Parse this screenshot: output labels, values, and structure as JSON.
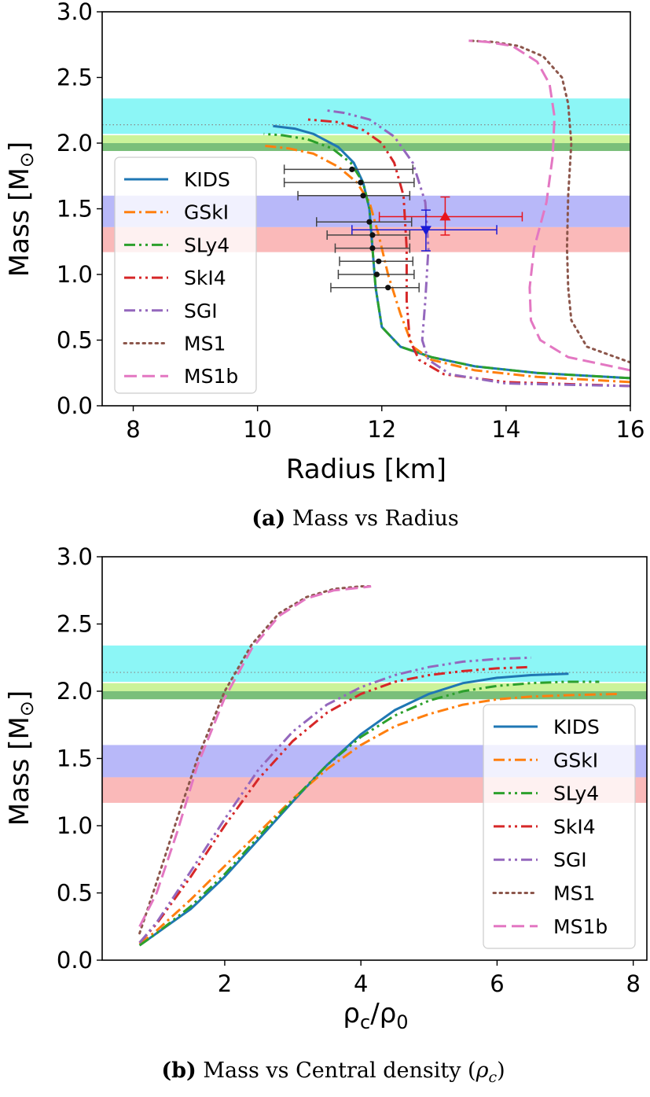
{
  "colors": {
    "KIDS": "#1f77b4",
    "GSkI": "#ff7f0e",
    "SLy4": "#2ca02c",
    "SkI4": "#d62728",
    "SGI": "#9467bd",
    "MS1": "#8c564b",
    "MS1b": "#e377c2",
    "band_cyan": "#7ff5f5",
    "band_green_light": "#c5f28f",
    "band_green_dark": "#6cb86c",
    "band_blue": "#b0b0f8",
    "band_red": "#f9b1b1",
    "band_pink": "#fde4e4"
  },
  "captions": {
    "a_label": "(a)",
    "a_text": "Mass vs Radius",
    "b_label": "(b)",
    "b_text": "Mass vs Central density (ρ_c)",
    "b_text_main": "Mass vs Central density (",
    "b_text_rho": "ρ",
    "b_text_sub": "c",
    "b_text_end": ")"
  },
  "chart_data": [
    {
      "id": "a",
      "type": "line",
      "title": "Mass vs Radius",
      "xlabel": "Radius [km]",
      "ylabel": "Mass [M⊙]",
      "ylabel_main": "Mass [M",
      "ylabel_sym": "⊙",
      "ylabel_end": "]",
      "xlim": [
        7.5,
        16
      ],
      "ylim": [
        0,
        3.0
      ],
      "xticks": [
        "8",
        "10",
        "12",
        "14",
        "16"
      ],
      "xtick_values": [
        8,
        10,
        12,
        14,
        16
      ],
      "yticks": [
        "0.0",
        "0.5",
        "1.0",
        "1.5",
        "2.0",
        "2.5",
        "3.0"
      ],
      "ytick_values": [
        0,
        0.5,
        1.0,
        1.5,
        2.0,
        2.5,
        3.0
      ],
      "legend_position": "center-left",
      "bands": [
        {
          "y0": 2.07,
          "y1": 2.34,
          "color": "band_cyan"
        },
        {
          "y0": 2.0,
          "y1": 2.06,
          "color": "band_green_light"
        },
        {
          "y0": 1.94,
          "y1": 2.0,
          "color": "band_green_dark"
        },
        {
          "y0": 1.36,
          "y1": 1.6,
          "color": "band_blue"
        },
        {
          "y0": 1.17,
          "y1": 1.36,
          "color": "band_red"
        }
      ],
      "hline": 2.14,
      "series": [
        {
          "name": "KIDS",
          "style": "solid",
          "x": [
            16.0,
            14.5,
            13.5,
            12.8,
            12.3,
            12.0,
            11.9,
            11.85,
            11.8,
            11.7,
            11.55,
            11.3,
            10.9,
            10.6,
            10.25
          ],
          "y": [
            0.21,
            0.25,
            0.3,
            0.37,
            0.45,
            0.6,
            0.9,
            1.2,
            1.5,
            1.7,
            1.85,
            1.97,
            2.07,
            2.11,
            2.13
          ]
        },
        {
          "name": "GSkI",
          "style": "dashdot",
          "x": [
            16.0,
            14.5,
            13.5,
            12.8,
            12.5,
            12.3,
            12.1,
            11.95,
            11.8,
            11.6,
            11.3,
            10.9,
            10.5,
            10.1
          ],
          "y": [
            0.18,
            0.22,
            0.27,
            0.35,
            0.45,
            0.7,
            1.0,
            1.3,
            1.55,
            1.7,
            1.82,
            1.92,
            1.96,
            1.98
          ]
        },
        {
          "name": "SLy4",
          "style": "dashdotdot",
          "x": [
            16.0,
            14.5,
            13.5,
            12.8,
            12.3,
            12.0,
            11.9,
            11.85,
            11.8,
            11.7,
            11.5,
            11.2,
            10.8,
            10.4,
            10.1
          ],
          "y": [
            0.21,
            0.25,
            0.3,
            0.37,
            0.45,
            0.6,
            0.9,
            1.2,
            1.5,
            1.7,
            1.85,
            1.96,
            2.03,
            2.06,
            2.07
          ]
        },
        {
          "name": "SkI4",
          "style": "dashdotdot",
          "x": [
            16.0,
            14.0,
            13.0,
            12.6,
            12.45,
            12.4,
            12.4,
            12.35,
            12.2,
            12.0,
            11.7,
            11.3,
            10.8
          ],
          "y": [
            0.15,
            0.18,
            0.24,
            0.35,
            0.5,
            0.8,
            1.2,
            1.6,
            1.85,
            2.0,
            2.1,
            2.16,
            2.18
          ]
        },
        {
          "name": "SGI",
          "style": "dashdotdot",
          "x": [
            16.0,
            14.0,
            13.1,
            12.75,
            12.65,
            12.7,
            12.75,
            12.7,
            12.5,
            12.2,
            11.8,
            11.4,
            11.1
          ],
          "y": [
            0.15,
            0.17,
            0.24,
            0.35,
            0.5,
            0.8,
            1.2,
            1.55,
            1.85,
            2.05,
            2.18,
            2.23,
            2.25
          ]
        },
        {
          "name": "MS1",
          "style": "dotted",
          "x": [
            16.0,
            15.3,
            15.05,
            15.0,
            14.98,
            15.0,
            15.05,
            15.0,
            14.9,
            14.6,
            14.2,
            13.8,
            13.4
          ],
          "y": [
            0.33,
            0.45,
            0.65,
            0.9,
            1.2,
            1.6,
            2.0,
            2.3,
            2.5,
            2.66,
            2.74,
            2.77,
            2.78
          ]
        },
        {
          "name": "MS1b",
          "style": "dashed",
          "x": [
            16.0,
            15.0,
            14.55,
            14.4,
            14.38,
            14.45,
            14.65,
            14.75,
            14.78,
            14.7,
            14.5,
            14.1,
            13.7,
            13.4
          ],
          "y": [
            0.27,
            0.37,
            0.5,
            0.65,
            0.9,
            1.2,
            1.55,
            1.9,
            2.2,
            2.45,
            2.62,
            2.74,
            2.77,
            2.78
          ]
        }
      ],
      "errorbars_black": [
        {
          "x": 11.52,
          "y": 1.8,
          "xerr": [
            10.43,
            12.5
          ]
        },
        {
          "x": 11.66,
          "y": 1.7,
          "xerr": [
            10.43,
            12.52
          ]
        },
        {
          "x": 11.7,
          "y": 1.6,
          "xerr": [
            10.65,
            12.45
          ]
        },
        {
          "x": 11.8,
          "y": 1.4,
          "xerr": [
            10.95,
            12.48
          ]
        },
        {
          "x": 11.85,
          "y": 1.3,
          "xerr": [
            11.12,
            12.45
          ]
        },
        {
          "x": 11.85,
          "y": 1.2,
          "xerr": [
            11.25,
            12.45
          ]
        },
        {
          "x": 11.95,
          "y": 1.1,
          "xerr": [
            11.32,
            12.5
          ]
        },
        {
          "x": 11.92,
          "y": 1.0,
          "xerr": [
            11.3,
            12.52
          ]
        },
        {
          "x": 12.1,
          "y": 0.9,
          "xerr": [
            11.18,
            12.6
          ]
        }
      ],
      "errorbar_red": {
        "x": 13.02,
        "y": 1.44,
        "xerr": [
          11.96,
          14.26
        ],
        "yerr": [
          1.3,
          1.59
        ],
        "marker": "triangle-up"
      },
      "errorbar_blue": {
        "x": 12.71,
        "y": 1.34,
        "xerr": [
          11.52,
          13.85
        ],
        "yerr": [
          1.18,
          1.49
        ],
        "marker": "triangle-down"
      }
    },
    {
      "id": "b",
      "type": "line",
      "title": "Mass vs Central density (ρc)",
      "xlabel": "ρc/ρ0",
      "xlabel_rho1": "ρ",
      "xlabel_sub1": "c",
      "xlabel_slash": "/",
      "xlabel_rho2": "ρ",
      "xlabel_sub2": "0",
      "ylabel": "Mass [M⊙]",
      "ylabel_main": "Mass [M",
      "ylabel_sym": "⊙",
      "ylabel_end": "]",
      "xlim": [
        0.2,
        8.2
      ],
      "ylim": [
        0,
        3.0
      ],
      "xticks": [
        "2",
        "4",
        "6",
        "8"
      ],
      "xtick_values": [
        2,
        4,
        6,
        8
      ],
      "yticks": [
        "0.0",
        "0.5",
        "1.0",
        "1.5",
        "2.0",
        "2.5",
        "3.0"
      ],
      "ytick_values": [
        0,
        0.5,
        1.0,
        1.5,
        2.0,
        2.5,
        3.0
      ],
      "legend_position": "center-right",
      "bands": [
        {
          "y0": 2.07,
          "y1": 2.34,
          "color": "band_cyan"
        },
        {
          "y0": 2.0,
          "y1": 2.06,
          "color": "band_green_light"
        },
        {
          "y0": 1.94,
          "y1": 2.0,
          "color": "band_green_dark"
        },
        {
          "y0": 1.36,
          "y1": 1.6,
          "color": "band_blue"
        },
        {
          "y0": 1.17,
          "y1": 1.36,
          "color": "band_red"
        }
      ],
      "hline": 2.14,
      "series": [
        {
          "name": "KIDS",
          "style": "solid",
          "x": [
            0.75,
            1.0,
            1.5,
            2.0,
            2.5,
            3.0,
            3.5,
            4.0,
            4.5,
            5.0,
            5.5,
            6.0,
            6.5,
            7.05
          ],
          "y": [
            0.11,
            0.2,
            0.38,
            0.62,
            0.9,
            1.18,
            1.45,
            1.68,
            1.86,
            1.98,
            2.06,
            2.1,
            2.12,
            2.13
          ]
        },
        {
          "name": "GSkI",
          "style": "dashdot",
          "x": [
            0.75,
            1.0,
            1.5,
            2.0,
            2.5,
            3.0,
            3.5,
            4.0,
            4.5,
            5.0,
            5.5,
            6.0,
            6.5,
            7.0,
            7.8
          ],
          "y": [
            0.12,
            0.22,
            0.45,
            0.7,
            0.95,
            1.2,
            1.42,
            1.6,
            1.74,
            1.83,
            1.9,
            1.94,
            1.96,
            1.97,
            1.98
          ]
        },
        {
          "name": "SLy4",
          "style": "dashdotdot",
          "x": [
            0.75,
            1.0,
            1.5,
            2.0,
            2.5,
            3.0,
            3.5,
            4.0,
            4.5,
            5.0,
            5.5,
            6.0,
            6.5,
            7.0,
            7.5
          ],
          "y": [
            0.11,
            0.2,
            0.4,
            0.64,
            0.92,
            1.19,
            1.45,
            1.66,
            1.82,
            1.93,
            2.0,
            2.04,
            2.06,
            2.07,
            2.07
          ]
        },
        {
          "name": "SkI4",
          "style": "dashdotdot",
          "x": [
            0.75,
            1.0,
            1.5,
            2.0,
            2.5,
            3.0,
            3.5,
            4.0,
            4.5,
            5.0,
            5.5,
            6.0,
            6.5
          ],
          "y": [
            0.13,
            0.27,
            0.62,
            1.0,
            1.35,
            1.63,
            1.84,
            1.98,
            2.07,
            2.12,
            2.15,
            2.17,
            2.18
          ]
        },
        {
          "name": "SGI",
          "style": "dashdotdot",
          "x": [
            0.75,
            1.0,
            1.5,
            2.0,
            2.5,
            3.0,
            3.5,
            4.0,
            4.5,
            5.0,
            5.5,
            6.0,
            6.5
          ],
          "y": [
            0.13,
            0.28,
            0.66,
            1.05,
            1.42,
            1.7,
            1.9,
            2.03,
            2.12,
            2.18,
            2.22,
            2.24,
            2.25
          ]
        },
        {
          "name": "MS1",
          "style": "dotted",
          "x": [
            0.75,
            1.0,
            1.3,
            1.6,
            2.0,
            2.4,
            2.8,
            3.2,
            3.6,
            4.0,
            4.15
          ],
          "y": [
            0.2,
            0.58,
            1.05,
            1.5,
            2.0,
            2.35,
            2.58,
            2.7,
            2.76,
            2.78,
            2.78
          ]
        },
        {
          "name": "MS1b",
          "style": "dashed",
          "x": [
            0.75,
            1.0,
            1.3,
            1.6,
            2.0,
            2.4,
            2.8,
            3.2,
            3.6,
            4.0,
            4.15
          ],
          "y": [
            0.25,
            0.5,
            0.95,
            1.45,
            1.95,
            2.32,
            2.56,
            2.69,
            2.75,
            2.77,
            2.78
          ]
        }
      ]
    }
  ]
}
